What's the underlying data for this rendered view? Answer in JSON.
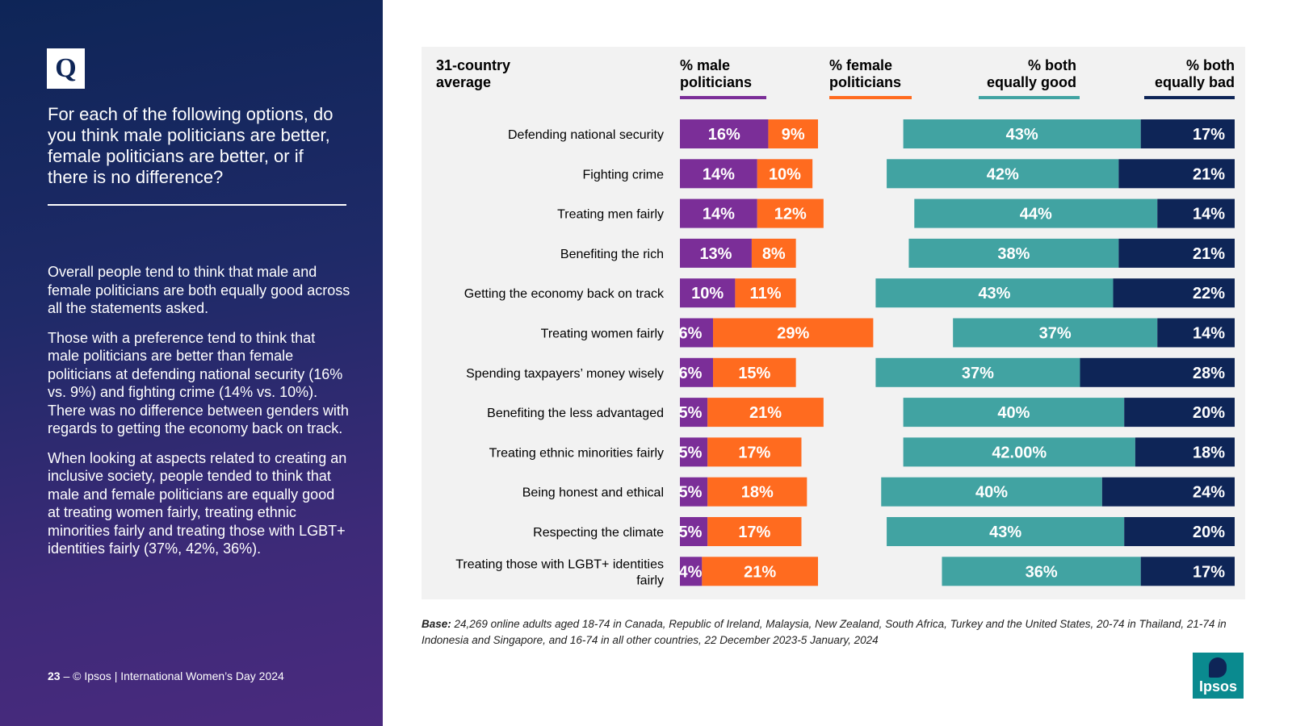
{
  "sidebar": {
    "badge": "Q",
    "question": "For each of the following options, do you think male politicians are better, female politicians are better, or if there is no difference?",
    "paragraphs": [
      "Overall people tend to think that male and female politicians are both equally good across all the statements asked.",
      "Those with a preference tend to think that male politicians are better than female politicians at defending national security (16% vs. 9%) and fighting crime (14% vs. 10%). There was no difference between genders with regards to getting the economy back on track.",
      "When looking at aspects related to creating an inclusive society, people tended to think that male and female politicians are equally good at treating women fairly, treating ethnic minorities fairly and treating those with LGBT+ identities fairly (37%, 42%, 36%)."
    ],
    "footer_page": "23",
    "footer_text": "– © Ipsos | International Women’s Day 2024"
  },
  "base": {
    "label": "Base:",
    "text": " 24,269 online adults aged 18-74 in Canada, Republic of Ireland, Malaysia, New Zealand, South Africa, Turkey and the United States, 20-74 in Thailand, 21-74 in Indonesia and Singapore, and 16-74 in all other countries, 22 December 2023-5 January, 2024"
  },
  "logo": {
    "text": "Ipsos"
  },
  "colors": {
    "male": "#7b2e98",
    "female": "#ff6b1f",
    "good": "#41a3a2",
    "bad": "#0e2557",
    "sidebar": "#1f2a68"
  },
  "chart_data": {
    "type": "bar",
    "orientation": "horizontal",
    "stacked": true,
    "title": "31-country average",
    "categories": [
      "Defending national security",
      "Fighting crime",
      "Treating men fairly",
      "Benefiting the rich",
      "Getting the economy back on track",
      "Treating women fairly",
      "Spending taxpayers’ money wisely",
      "Benefiting the less advantaged",
      "Treating ethnic minorities fairly",
      "Being honest and ethical",
      "Respecting the climate",
      "Treating those with LGBT+ identities fairly"
    ],
    "series": [
      {
        "name": "% male politicians",
        "color": "#7b2e98",
        "group": "preference",
        "values": [
          16,
          14,
          14,
          13,
          10,
          6,
          6,
          5,
          5,
          5,
          5,
          4
        ],
        "labels": [
          "16%",
          "14%",
          "14%",
          "13%",
          "10%",
          "6%",
          "6%",
          "5%",
          "5%",
          "5%",
          "5%",
          "4%"
        ]
      },
      {
        "name": "% female politicians",
        "color": "#ff6b1f",
        "group": "preference",
        "values": [
          9,
          10,
          12,
          8,
          11,
          29,
          15,
          21,
          17,
          18,
          17,
          21
        ],
        "labels": [
          "9%",
          "10%",
          "12%",
          "8%",
          "11%",
          "29%",
          "15%",
          "21%",
          "17%",
          "18%",
          "17%",
          "21%"
        ]
      },
      {
        "name": "% both equally good",
        "color": "#41a3a2",
        "group": "no-difference",
        "values": [
          43,
          42,
          44,
          38,
          43,
          37,
          37,
          40,
          42,
          40,
          43,
          36
        ],
        "labels": [
          "43%",
          "42%",
          "44%",
          "38%",
          "43%",
          "37%",
          "37%",
          "40%",
          "42.00%",
          "40%",
          "43%",
          "36%"
        ]
      },
      {
        "name": "% both equally bad",
        "color": "#0e2557",
        "group": "no-difference",
        "values": [
          17,
          21,
          14,
          21,
          22,
          14,
          28,
          20,
          18,
          24,
          20,
          17
        ],
        "labels": [
          "17%",
          "21%",
          "14%",
          "21%",
          "22%",
          "14%",
          "28%",
          "20%",
          "18%",
          "24%",
          "20%",
          "17%"
        ]
      }
    ],
    "legend": "top",
    "grid": false
  }
}
